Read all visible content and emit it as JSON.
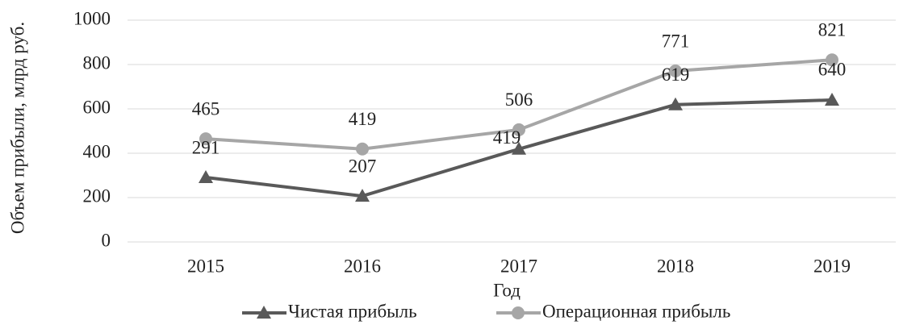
{
  "chart_data": {
    "type": "line",
    "categories": [
      "2015",
      "2016",
      "2017",
      "2018",
      "2019"
    ],
    "series": [
      {
        "name": "Чистая прибыль",
        "color": "#595959",
        "values": [
          291,
          207,
          419,
          619,
          640
        ]
      },
      {
        "name": "Операционная прибыль",
        "color": "#a6a6a6",
        "values": [
          465,
          419,
          506,
          771,
          821
        ]
      }
    ],
    "ylim": [
      0,
      1000
    ],
    "yticks": [
      0,
      200,
      400,
      600,
      800,
      1000
    ],
    "grid": true,
    "xlabel": "Год",
    "ylabel": "Объем прибыли, млрд руб."
  }
}
